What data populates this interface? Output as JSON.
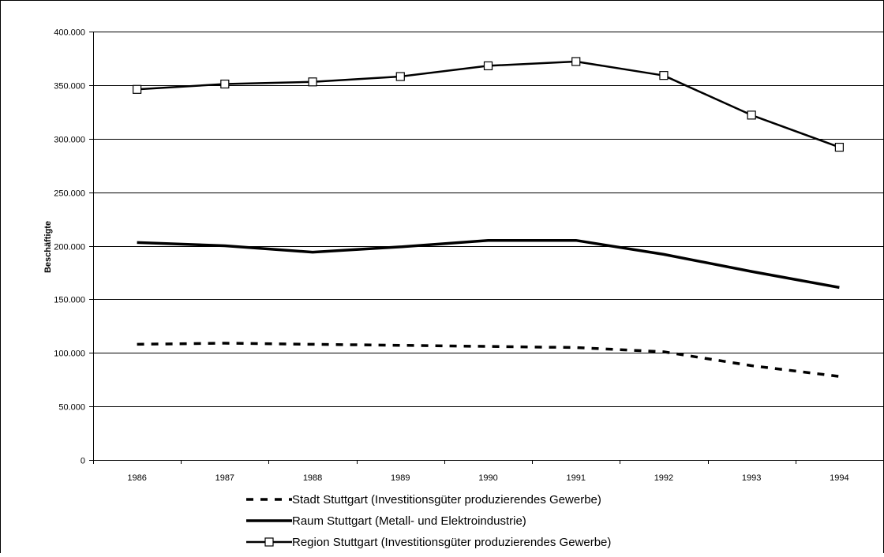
{
  "chart_data": {
    "type": "line",
    "title": "",
    "xlabel": "",
    "ylabel": "Beschäftigte",
    "ylim": [
      0,
      400000
    ],
    "yticks": [
      0,
      50000,
      100000,
      150000,
      200000,
      250000,
      300000,
      350000,
      400000
    ],
    "ytick_labels": [
      "0",
      "50.000",
      "100.000",
      "150.000",
      "200.000",
      "250.000",
      "300.000",
      "350.000",
      "400.000"
    ],
    "categories": [
      "1986",
      "1987",
      "1988",
      "1989",
      "1990",
      "1991",
      "1992",
      "1993",
      "1994"
    ],
    "grid": "horizontal",
    "legend_position": "bottom",
    "series": [
      {
        "name": "Stadt Stuttgart (Investitionsgüter produzierendes Gewerbe)",
        "style": "dashed",
        "color": "#000000",
        "values": [
          108000,
          109000,
          108000,
          107000,
          106000,
          105000,
          101000,
          88000,
          78000
        ]
      },
      {
        "name": "Raum Stuttgart (Metall- und Elektroindustrie)",
        "style": "solid-thick",
        "color": "#000000",
        "values": [
          203000,
          200000,
          194000,
          199000,
          205000,
          205000,
          192000,
          176000,
          161000
        ]
      },
      {
        "name": "Region Stuttgart (Investitionsgüter produzierendes Gewerbe)",
        "style": "solid-square-markers",
        "color": "#000000",
        "values": [
          346000,
          351000,
          353000,
          358000,
          368000,
          372000,
          359000,
          322000,
          292000
        ]
      }
    ]
  }
}
